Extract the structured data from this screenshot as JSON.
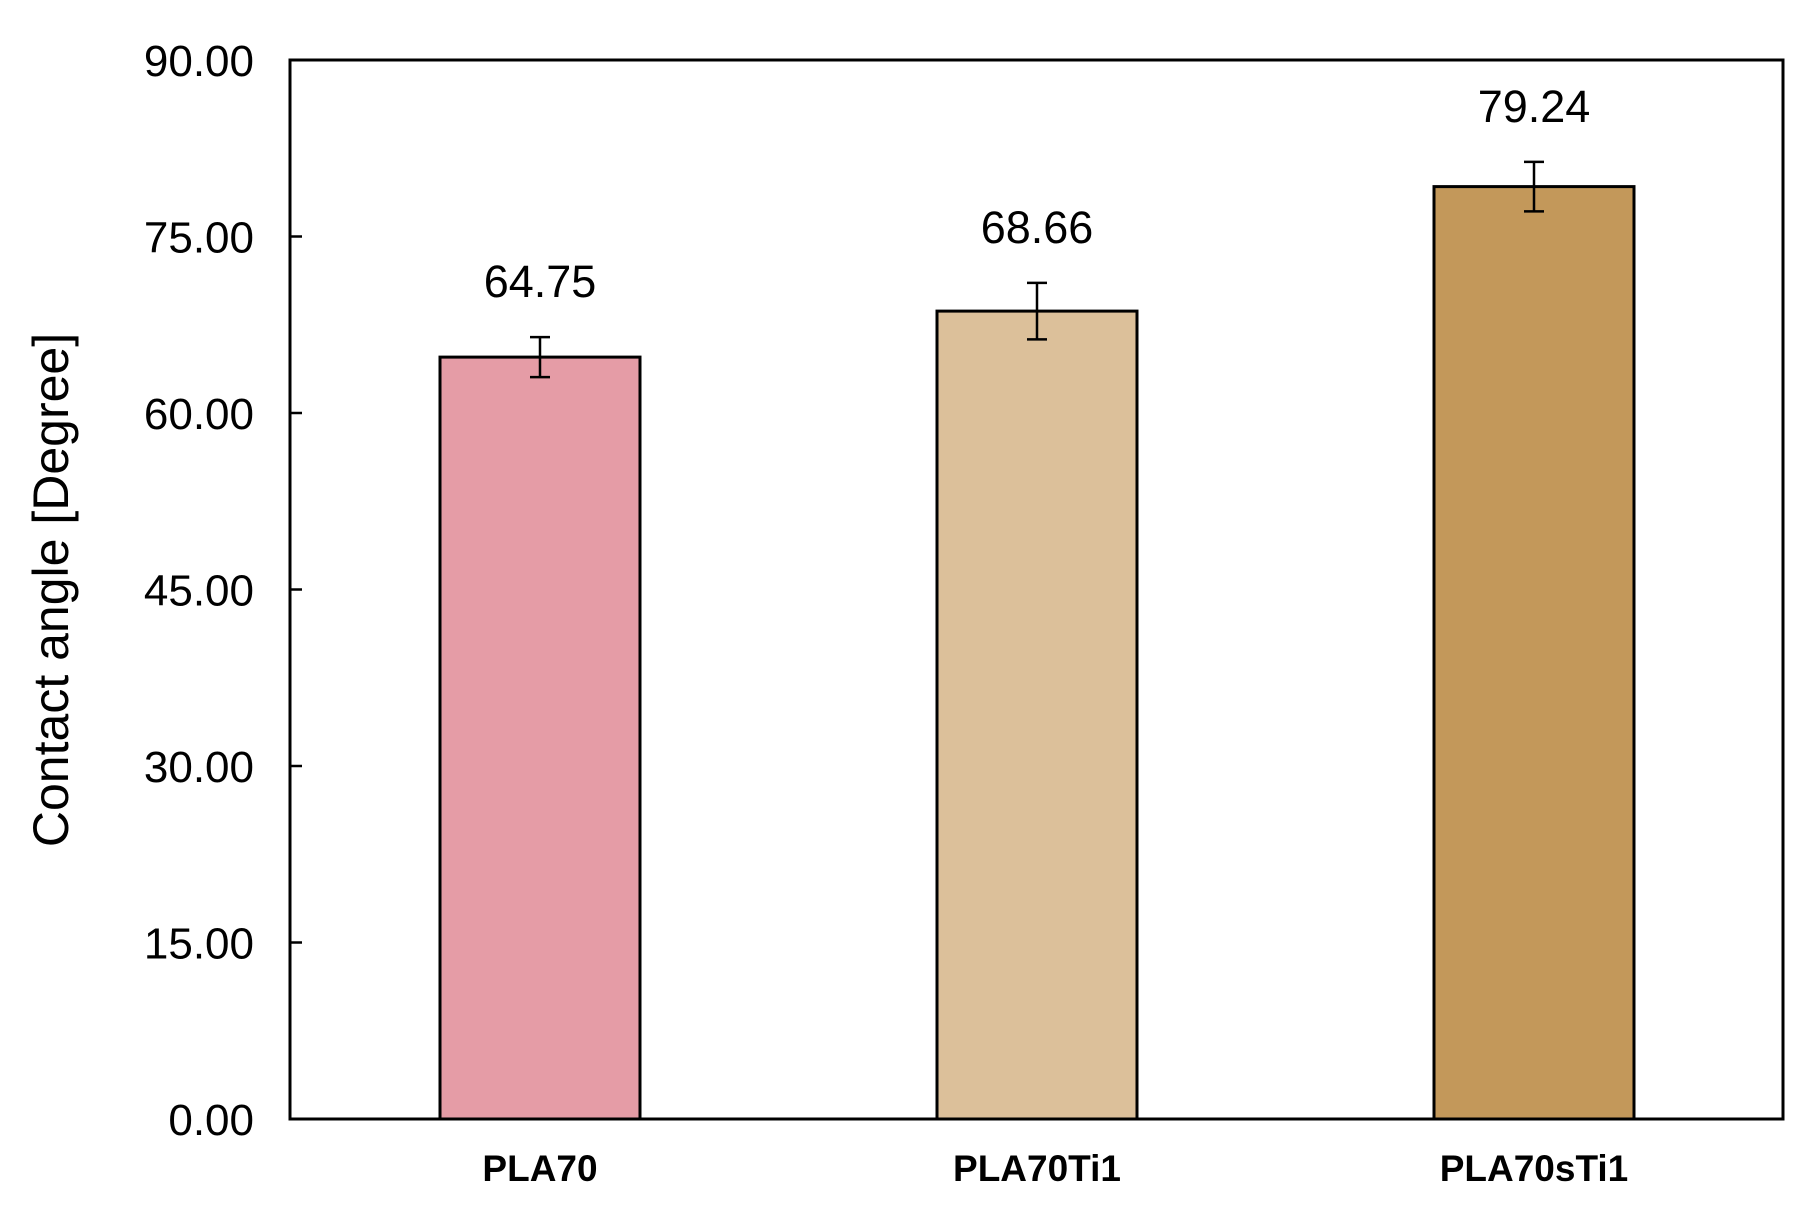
{
  "chart_data": {
    "type": "bar",
    "title": "",
    "xlabel": "",
    "ylabel": "Contact angle [Degree]",
    "ylim": [
      0,
      90
    ],
    "yticks": [
      "0.00",
      "15.00",
      "30.00",
      "45.00",
      "60.00",
      "75.00",
      "90.00"
    ],
    "categories": [
      "PLA70",
      "PLA70Ti1",
      "PLA70sTi1"
    ],
    "values": [
      64.75,
      68.66,
      79.24
    ],
    "value_labels": [
      "64.75",
      "68.66",
      "79.24"
    ],
    "error": [
      1.7,
      2.4,
      2.1
    ],
    "colors": [
      "#e59ca6",
      "#dcc09a",
      "#c3985a"
    ],
    "grid": false,
    "legend": "none"
  }
}
